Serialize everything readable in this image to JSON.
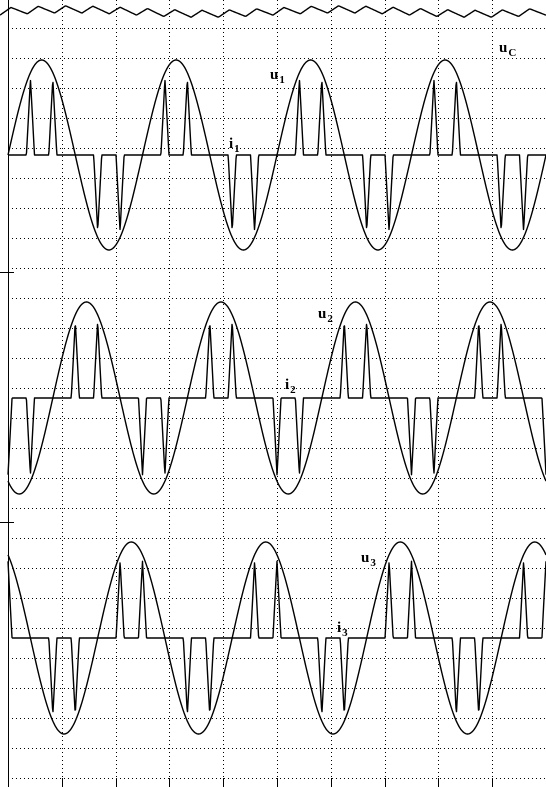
{
  "chart_data": {
    "type": "line",
    "grid": true,
    "x_divisions": 10,
    "panels": [
      {
        "series": [
          {
            "name": "uC",
            "label_main": "u",
            "label_sub": "C"
          },
          {
            "name": "u1",
            "label_main": "u",
            "label_sub": "1"
          },
          {
            "name": "i1",
            "label_main": "i",
            "label_sub": "1"
          }
        ]
      },
      {
        "series": [
          {
            "name": "u2",
            "label_main": "u",
            "label_sub": "2"
          },
          {
            "name": "i2",
            "label_main": "i",
            "label_sub": "2"
          }
        ]
      },
      {
        "series": [
          {
            "name": "u3",
            "label_main": "u",
            "label_sub": "3"
          },
          {
            "name": "i3",
            "label_main": "i",
            "label_sub": "3"
          }
        ]
      }
    ],
    "waveforms": {
      "uC": {
        "kind": "ripple",
        "cycles": 20,
        "y_range": [
          0.75,
          1.0
        ]
      },
      "u1": {
        "kind": "sine",
        "cycles": 4.0,
        "phase_deg": 0
      },
      "u2": {
        "kind": "sine",
        "cycles": 4.0,
        "phase_deg": -120
      },
      "u3": {
        "kind": "sine",
        "cycles": 4.0,
        "phase_deg": 120
      },
      "i_pulses_per_half_cycle": 2,
      "i_peak_fraction": 0.85
    }
  }
}
